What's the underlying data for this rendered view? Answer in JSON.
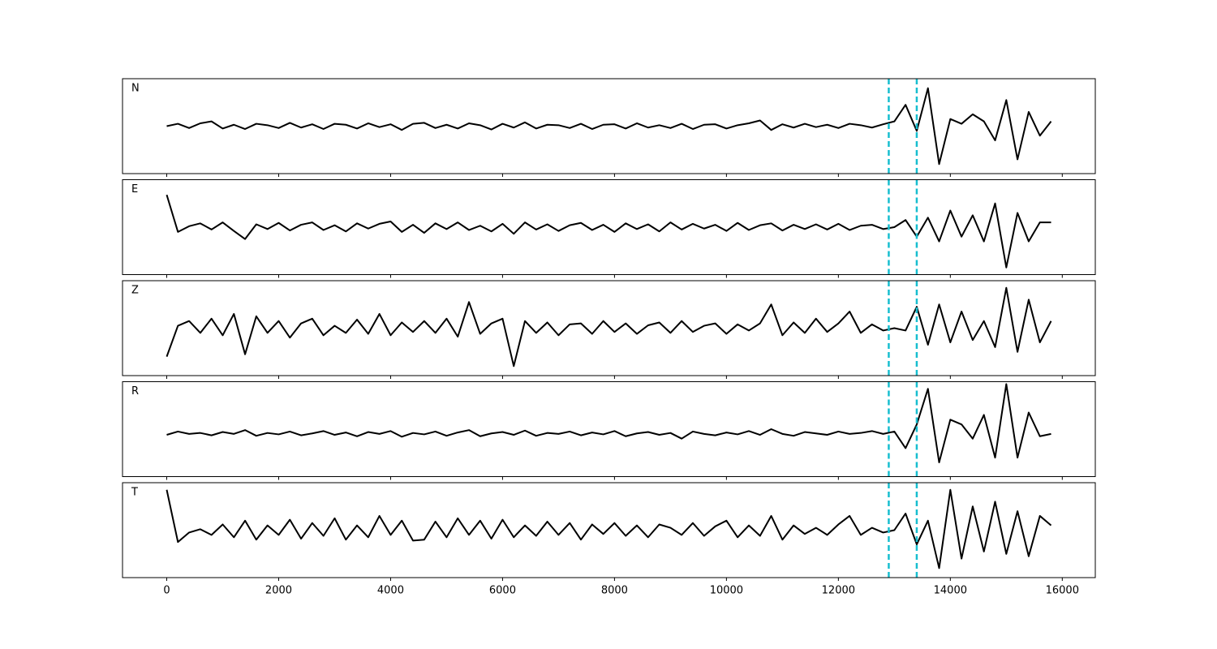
{
  "chart_data": {
    "type": "line",
    "subplots": true,
    "x": [
      0,
      200,
      400,
      600,
      800,
      1000,
      1200,
      1400,
      1600,
      1800,
      2000,
      2200,
      2400,
      2600,
      2800,
      3000,
      3200,
      3400,
      3600,
      3800,
      4000,
      4200,
      4400,
      4600,
      4800,
      5000,
      5200,
      5400,
      5600,
      5800,
      6000,
      6200,
      6400,
      6600,
      6800,
      7000,
      7200,
      7400,
      7600,
      7800,
      8000,
      8200,
      8400,
      8600,
      8800,
      9000,
      9200,
      9400,
      9600,
      9800,
      10000,
      10200,
      10400,
      10600,
      10800,
      11000,
      11200,
      11400,
      11600,
      11800,
      12000,
      12200,
      12400,
      12600,
      12800,
      13000,
      13200,
      13400,
      13600,
      13800,
      14000,
      14200,
      14400,
      14600,
      14800,
      15000,
      15200,
      15400,
      15600,
      15800
    ],
    "series": [
      {
        "name": "N",
        "color": "#000000",
        "values": [
          0.0,
          0.05,
          -0.04,
          0.06,
          0.1,
          -0.05,
          0.03,
          -0.06,
          0.05,
          0.02,
          -0.04,
          0.07,
          -0.03,
          0.04,
          -0.06,
          0.05,
          0.03,
          -0.05,
          0.06,
          -0.02,
          0.04,
          -0.08,
          0.05,
          0.07,
          -0.04,
          0.03,
          -0.05,
          0.06,
          0.02,
          -0.07,
          0.05,
          -0.03,
          0.08,
          -0.05,
          0.03,
          0.02,
          -0.04,
          0.05,
          -0.06,
          0.03,
          0.04,
          -0.05,
          0.06,
          -0.03,
          0.02,
          -0.04,
          0.05,
          -0.06,
          0.03,
          0.04,
          -0.05,
          0.02,
          0.06,
          0.12,
          -0.08,
          0.04,
          -0.03,
          0.05,
          -0.02,
          0.03,
          -0.04,
          0.05,
          0.02,
          -0.03,
          0.04,
          0.1,
          0.45,
          -0.1,
          0.8,
          -0.8,
          0.15,
          0.05,
          0.25,
          0.1,
          -0.3,
          0.55,
          -0.7,
          0.3,
          -0.2,
          0.1
        ]
      },
      {
        "name": "E",
        "color": "#000000",
        "values": [
          0.68,
          -0.1,
          0.02,
          0.08,
          -0.05,
          0.1,
          -0.08,
          -0.25,
          0.06,
          -0.04,
          0.09,
          -0.07,
          0.05,
          0.1,
          -0.06,
          0.04,
          -0.09,
          0.08,
          -0.03,
          0.07,
          0.12,
          -0.1,
          0.05,
          -0.12,
          0.08,
          -0.04,
          0.1,
          -0.06,
          0.03,
          -0.09,
          0.07,
          -0.14,
          0.1,
          -0.05,
          0.06,
          -0.08,
          0.04,
          0.09,
          -0.06,
          0.05,
          -0.1,
          0.08,
          -0.04,
          0.06,
          -0.09,
          0.1,
          -0.05,
          0.07,
          -0.03,
          0.05,
          -0.08,
          0.09,
          -0.06,
          0.04,
          0.08,
          -0.07,
          0.05,
          -0.04,
          0.06,
          -0.05,
          0.07,
          -0.06,
          0.03,
          0.05,
          -0.04,
          0.0,
          0.15,
          -0.2,
          0.2,
          -0.3,
          0.35,
          -0.2,
          0.25,
          -0.3,
          0.5,
          -0.85,
          0.3,
          -0.3,
          0.1,
          0.1
        ]
      },
      {
        "name": "Z",
        "color": "#000000",
        "values": [
          -0.6,
          0.05,
          0.15,
          -0.1,
          0.2,
          -0.15,
          0.3,
          -0.55,
          0.25,
          -0.1,
          0.15,
          -0.2,
          0.1,
          0.2,
          -0.15,
          0.05,
          -0.1,
          0.18,
          -0.12,
          0.3,
          -0.15,
          0.12,
          -0.08,
          0.15,
          -0.1,
          0.2,
          -0.18,
          0.55,
          -0.12,
          0.1,
          0.2,
          -0.8,
          0.15,
          -0.1,
          0.12,
          -0.15,
          0.08,
          0.1,
          -0.12,
          0.15,
          -0.08,
          0.1,
          -0.12,
          0.06,
          0.12,
          -0.1,
          0.15,
          -0.08,
          0.05,
          0.1,
          -0.12,
          0.08,
          -0.05,
          0.1,
          0.5,
          -0.15,
          0.12,
          -0.1,
          0.2,
          -0.08,
          0.1,
          0.35,
          -0.1,
          0.08,
          -0.05,
          0.0,
          -0.05,
          0.45,
          -0.35,
          0.5,
          -0.3,
          0.35,
          -0.25,
          0.15,
          -0.4,
          0.85,
          -0.5,
          0.6,
          -0.3,
          0.15
        ]
      },
      {
        "name": "R",
        "color": "#000000",
        "values": [
          -0.12,
          -0.05,
          -0.1,
          -0.08,
          -0.13,
          -0.06,
          -0.1,
          -0.02,
          -0.14,
          -0.08,
          -0.11,
          -0.05,
          -0.13,
          -0.09,
          -0.04,
          -0.12,
          -0.07,
          -0.15,
          -0.06,
          -0.1,
          -0.04,
          -0.16,
          -0.08,
          -0.11,
          -0.05,
          -0.14,
          -0.07,
          -0.02,
          -0.15,
          -0.09,
          -0.06,
          -0.12,
          -0.03,
          -0.14,
          -0.08,
          -0.1,
          -0.05,
          -0.13,
          -0.07,
          -0.11,
          -0.04,
          -0.15,
          -0.09,
          -0.06,
          -0.12,
          -0.08,
          -0.2,
          -0.05,
          -0.1,
          -0.13,
          -0.07,
          -0.11,
          -0.04,
          -0.12,
          0.0,
          -0.1,
          -0.14,
          -0.06,
          -0.09,
          -0.12,
          -0.05,
          -0.1,
          -0.08,
          -0.04,
          -0.1,
          -0.05,
          -0.4,
          0.1,
          0.85,
          -0.7,
          0.2,
          0.1,
          -0.2,
          0.3,
          -0.6,
          0.95,
          -0.6,
          0.35,
          -0.15,
          -0.1
        ]
      },
      {
        "name": "T",
        "color": "#000000",
        "values": [
          0.85,
          -0.25,
          -0.05,
          0.02,
          -0.1,
          0.12,
          -0.15,
          0.2,
          -0.2,
          0.1,
          -0.1,
          0.22,
          -0.18,
          0.15,
          -0.12,
          0.25,
          -0.2,
          0.1,
          -0.15,
          0.3,
          -0.1,
          0.2,
          -0.22,
          -0.2,
          0.18,
          -0.15,
          0.25,
          -0.1,
          0.2,
          -0.18,
          0.22,
          -0.15,
          0.1,
          -0.12,
          0.18,
          -0.1,
          0.15,
          -0.2,
          0.12,
          -0.08,
          0.15,
          -0.12,
          0.1,
          -0.15,
          0.12,
          0.05,
          -0.1,
          0.15,
          -0.12,
          0.08,
          0.2,
          -0.15,
          0.1,
          -0.12,
          0.3,
          -0.2,
          0.1,
          -0.08,
          0.05,
          -0.1,
          0.12,
          0.3,
          -0.1,
          0.05,
          -0.05,
          0.0,
          0.35,
          -0.3,
          0.2,
          -0.8,
          0.85,
          -0.6,
          0.5,
          -0.45,
          0.6,
          -0.5,
          0.4,
          -0.55,
          0.3,
          0.1
        ]
      }
    ],
    "xlim": [
      -790,
      16590
    ],
    "xticks": [
      0,
      2000,
      4000,
      6000,
      8000,
      10000,
      12000,
      14000,
      16000
    ],
    "ylim": [
      -1,
      1
    ],
    "vlines": [
      12900,
      13400
    ],
    "vline_color": "#17becf"
  }
}
